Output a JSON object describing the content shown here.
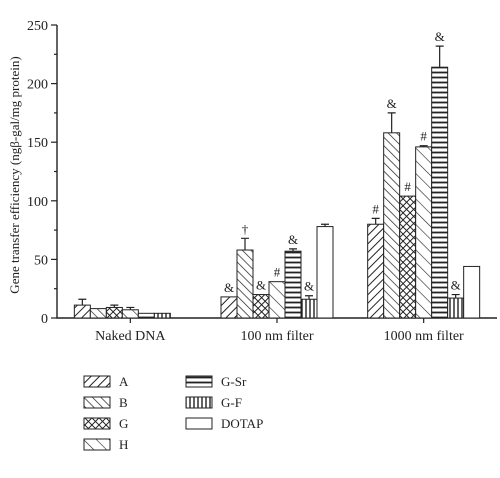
{
  "chart_data": {
    "type": "bar",
    "ylabel": "Gene transfer efficiency (ngβ-gal/mg protein)",
    "xlabel": "",
    "ylim": [
      0,
      250
    ],
    "yticks": [
      0,
      50,
      100,
      150,
      200,
      250
    ],
    "categories": [
      "Naked DNA",
      "100 nm filter",
      "1000 nm filter"
    ],
    "series": [
      {
        "name": "A",
        "pattern": "diag-down",
        "values": [
          11,
          18,
          80
        ],
        "errors": [
          5,
          0,
          5
        ],
        "annotations": [
          "",
          "&",
          "#"
        ]
      },
      {
        "name": "B",
        "pattern": "diag-up",
        "values": [
          8,
          58,
          158
        ],
        "errors": [
          0,
          10,
          17
        ],
        "annotations": [
          "",
          "†",
          "&"
        ]
      },
      {
        "name": "G",
        "pattern": "crosshatch",
        "values": [
          9,
          20,
          104
        ],
        "errors": [
          2,
          0,
          0
        ],
        "annotations": [
          "",
          "&",
          "#"
        ]
      },
      {
        "name": "H",
        "pattern": "diag-down-wide",
        "values": [
          7,
          31,
          146
        ],
        "errors": [
          2,
          0,
          1
        ],
        "annotations": [
          "",
          "#",
          "#"
        ]
      },
      {
        "name": "G-Sr",
        "pattern": "horizontal",
        "values": [
          4,
          57,
          214
        ],
        "errors": [
          0,
          2,
          18
        ],
        "annotations": [
          "",
          "&",
          "&"
        ]
      },
      {
        "name": "G-F",
        "pattern": "vertical",
        "values": [
          4,
          16,
          17
        ],
        "errors": [
          0,
          3,
          3
        ],
        "annotations": [
          "",
          "&",
          "&"
        ]
      },
      {
        "name": "DOTAP",
        "pattern": "none",
        "values": [
          0,
          78,
          44
        ],
        "errors": [
          0,
          2,
          0
        ],
        "annotations": [
          "",
          "",
          ""
        ]
      }
    ],
    "legend_position": "bottom",
    "grid": false
  }
}
